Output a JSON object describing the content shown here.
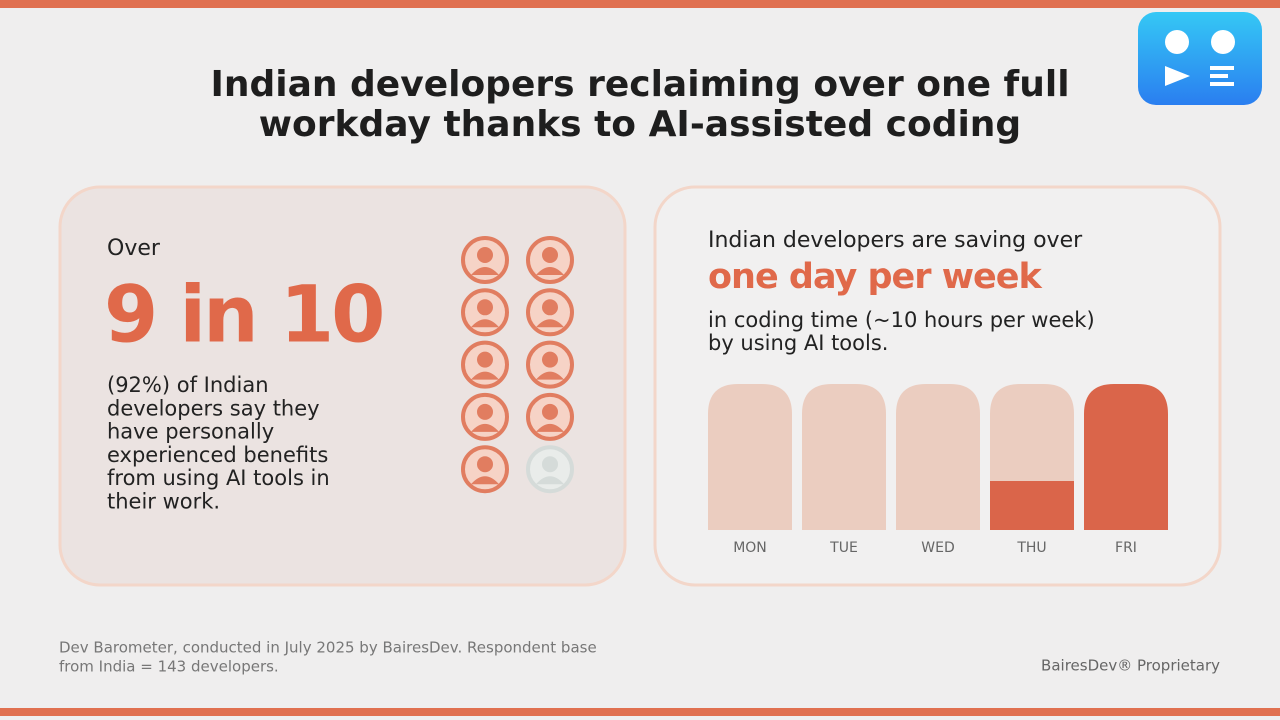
{
  "title_lines": [
    "Indian developers reclaiming over one full",
    "workday thanks to AI-assisted coding"
  ],
  "left_card": {
    "lead": "Over",
    "headline": "9 in 10",
    "body_lines": [
      "(92%) of Indian",
      "developers say they",
      "have personally",
      "experienced benefits",
      "from using AI tools in",
      "their work."
    ]
  },
  "right_card": {
    "lead": "Indian developers are saving over",
    "headline": "one day per week",
    "body_lines": [
      "in coding time (~10 hours per week)",
      "by using AI tools."
    ],
    "days": [
      "MON",
      "TUE",
      "WED",
      "THU",
      "FRI"
    ]
  },
  "footer": {
    "source_lines": [
      "Dev Barometer, conducted in July 2025 by BairesDev. Respondent base",
      "from India = 143 developers."
    ],
    "credit": "BairesDev® Proprietary"
  }
}
